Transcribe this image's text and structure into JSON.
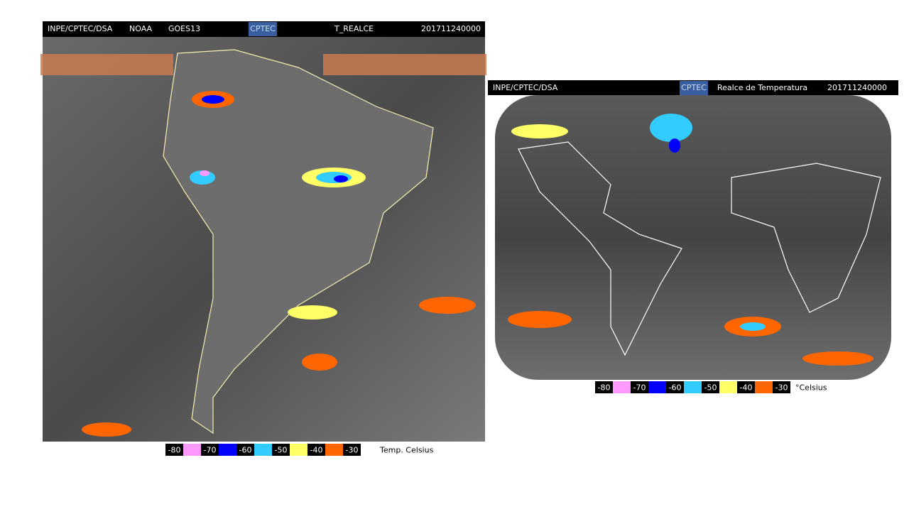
{
  "left_panel": {
    "header": [
      "INPE/CPTEC/DSA",
      "NOAA",
      "GOES13",
      "CPTEC",
      "T_REALCE",
      "201711240000"
    ],
    "legend": {
      "labels": [
        "-80",
        "-70",
        "-60",
        "-50",
        "-40",
        "-30"
      ],
      "colors": [
        "#ff99ff",
        "#0000ff",
        "#33ccff",
        "#ffff66",
        "#ff6600"
      ],
      "unit": "Temp. Celsius"
    }
  },
  "right_panel": {
    "header": [
      "INPE/CPTEC/DSA",
      "CPTEC",
      "Realce de Temperatura",
      "201711240000"
    ],
    "legend": {
      "labels": [
        "-80",
        "-70",
        "-60",
        "-50",
        "-40",
        "-30"
      ],
      "colors": [
        "#ff99ff",
        "#0000ff",
        "#33ccff",
        "#ffff66",
        "#ff6600"
      ],
      "unit": "°Celsius"
    }
  }
}
